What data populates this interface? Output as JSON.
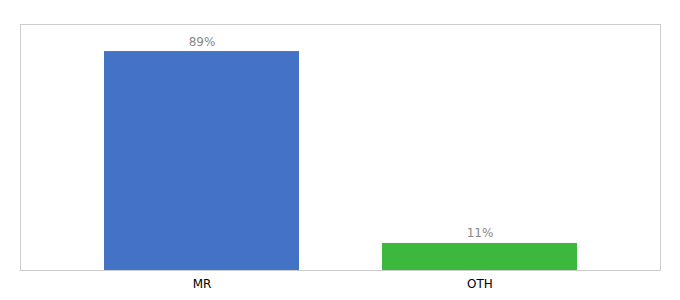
{
  "chart_data": {
    "type": "bar",
    "categories": [
      "MR",
      "OTH"
    ],
    "values": [
      89,
      11
    ],
    "value_labels": [
      "89%",
      "11%"
    ],
    "colors": [
      "#4472c4",
      "#3cb83c"
    ],
    "ylim": [
      0,
      100
    ],
    "data_labels": true,
    "tick_labels": "x",
    "grid": false
  }
}
